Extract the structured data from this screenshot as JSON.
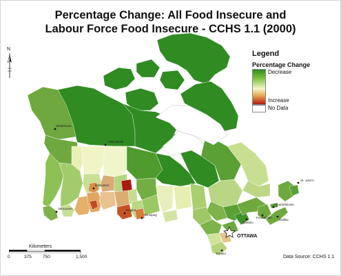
{
  "title_line1": "Percentage Change: All Food Insecure and",
  "title_line2": "Labour Force Food Insecure - CCHS 1.1 (2000)",
  "legend": {
    "title": "Legend",
    "subtitle": "Percentage Change",
    "decrease_label": "Decrease",
    "increase_label": "Increase",
    "no_data_label": "No Data",
    "colors": {
      "decrease_strong": "#2e8c1f",
      "decrease_mid": "#7fbf40",
      "neutral": "#f3f7c8",
      "increase_mid": "#e7a857",
      "increase_strong": "#b21c12",
      "no_data": "#ffffff"
    }
  },
  "north_arrow": {
    "label": "N",
    "icon": "north-arrow-icon"
  },
  "scale_bar": {
    "title": "Kilometers",
    "ticks": [
      "0",
      "375",
      "750",
      "1,500"
    ]
  },
  "capital": {
    "label": "OTTAWA",
    "icon": "star-icon"
  },
  "cities": {
    "whitehorse": "Whitehorse",
    "yellowknife": "Yellowknife",
    "edmonton": "Edmonton",
    "vancouver": "Vancouver",
    "regina": "Regina",
    "winnipeg": "Winnipeg",
    "toronto": "Toronto",
    "quebec": "Québec",
    "fredericton": "Fredericton",
    "charlottetown": "Charlottetown",
    "halifax": "Halifax",
    "st_johns": "St. John's"
  },
  "data_source": "Data Source: CCHS 1.1"
}
